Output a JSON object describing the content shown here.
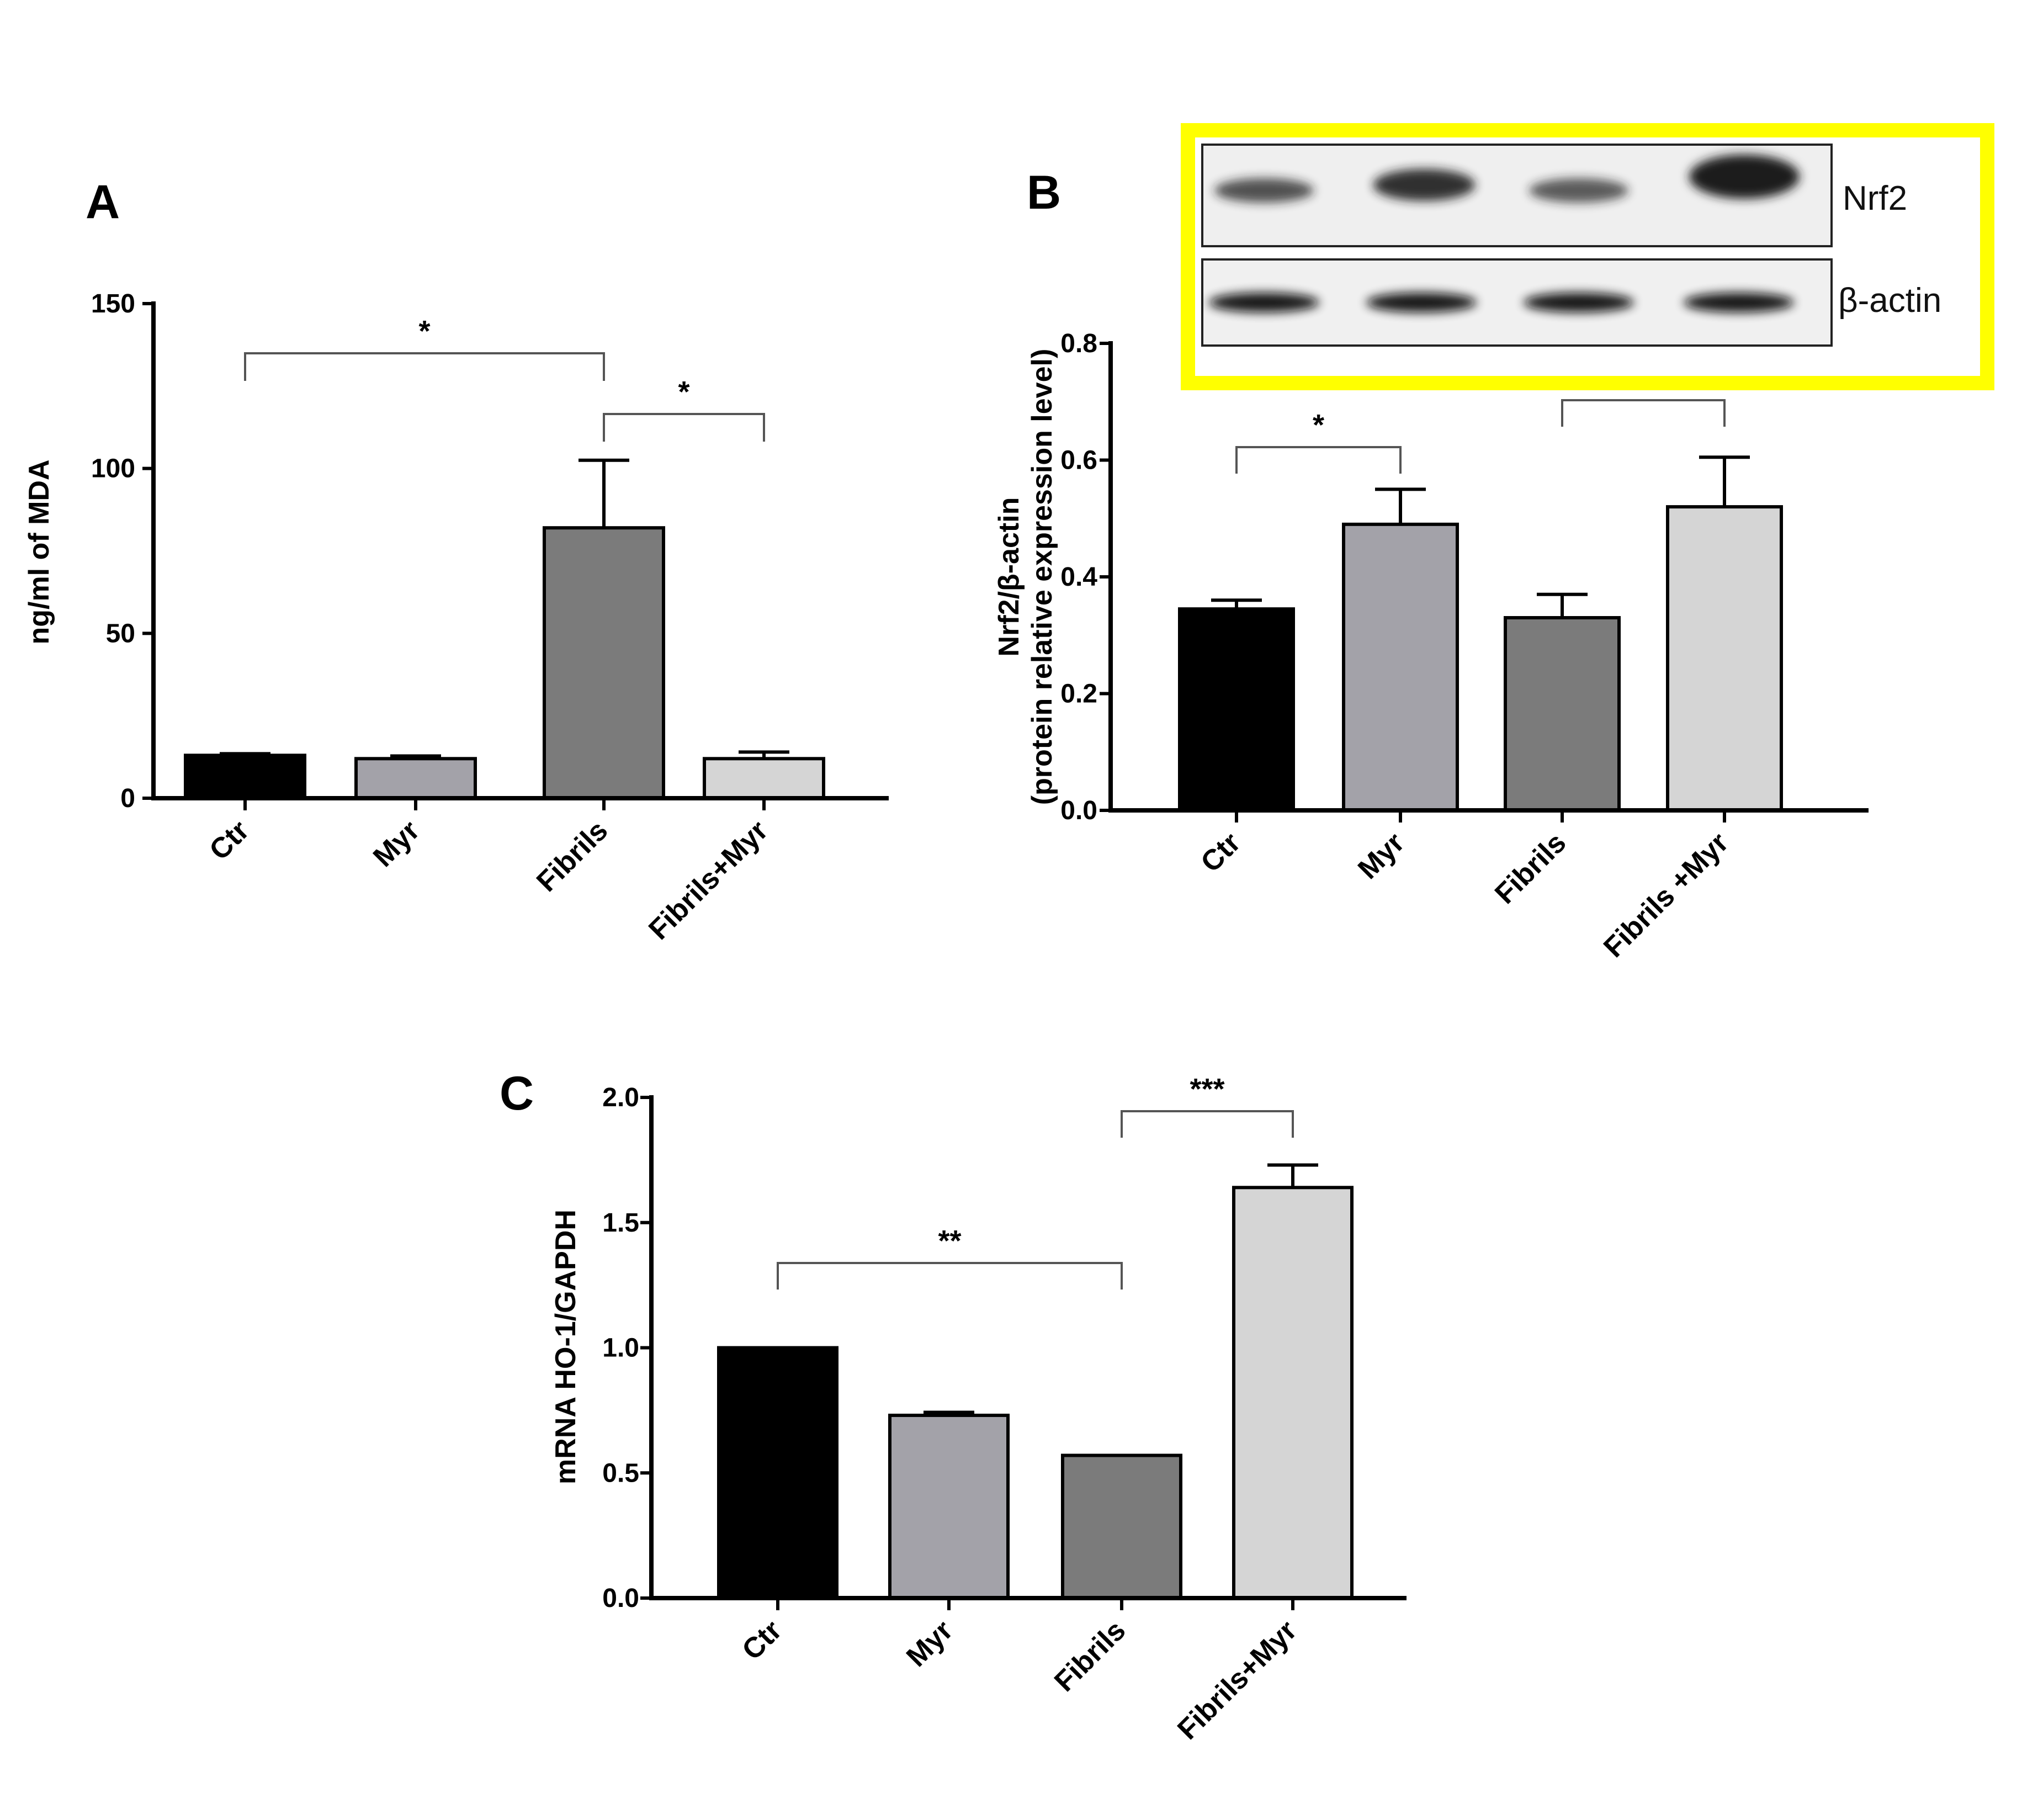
{
  "colors": {
    "highlight_frame": "#ffff00",
    "axis": "#000000",
    "bar_outline": "#000000"
  },
  "chart_data": [
    {
      "panel": "A",
      "type": "bar",
      "categories": [
        "Ctr",
        "Myr",
        "Fibrils",
        "Fibrils+Myr"
      ],
      "values": [
        13,
        12,
        82,
        12
      ],
      "errors": [
        0.5,
        0.8,
        20.5,
        2
      ],
      "bar_colors": [
        "#000000",
        "#a3a2a9",
        "#7b7b7b",
        "#d5d5d5"
      ],
      "ylabel": "ng/ml of MDA",
      "ylim": [
        0,
        150
      ],
      "yticks": [
        0,
        50,
        100,
        150
      ],
      "significance": [
        {
          "from": 0,
          "to": 2,
          "label": "*"
        },
        {
          "from": 2,
          "to": 3,
          "label": "*"
        }
      ]
    },
    {
      "panel": "B",
      "type": "bar",
      "categories": [
        "Ctr",
        "Myr",
        "Fibrils",
        "Fibrils +Myr"
      ],
      "values": [
        0.345,
        0.49,
        0.33,
        0.52
      ],
      "errors": [
        0.015,
        0.06,
        0.04,
        0.085
      ],
      "bar_colors": [
        "#000000",
        "#a3a2a9",
        "#7b7b7b",
        "#d5d5d5"
      ],
      "ylabel_line1": "Nrf2/β-actin",
      "ylabel_line2": "(protein relative expression level)",
      "ylim": [
        0,
        0.8
      ],
      "yticks": [
        "0.0",
        "0.2",
        "0.4",
        "0.6",
        "0.8"
      ],
      "significance": [
        {
          "from": 0,
          "to": 1,
          "label": "*"
        },
        {
          "from": 2,
          "to": 3,
          "label": ""
        }
      ],
      "blot_labels": [
        "Nrf2",
        "β-actin"
      ]
    },
    {
      "panel": "C",
      "type": "bar",
      "categories": [
        "Ctr",
        "Myr",
        "Fibrils",
        "Fibrils+Myr"
      ],
      "values": [
        1.0,
        0.73,
        0.57,
        1.64
      ],
      "errors": [
        0,
        0.012,
        0,
        0.09
      ],
      "bar_colors": [
        "#000000",
        "#a3a2a9",
        "#7b7b7b",
        "#d5d5d5"
      ],
      "ylabel": "mRNA HO-1/GAPDH",
      "ylim": [
        0,
        2.0
      ],
      "yticks": [
        "0.0",
        "0.5",
        "1.0",
        "1.5",
        "2.0"
      ],
      "significance": [
        {
          "from": 0,
          "to": 2,
          "label": "**"
        },
        {
          "from": 2,
          "to": 3,
          "label": "***"
        }
      ]
    }
  ]
}
